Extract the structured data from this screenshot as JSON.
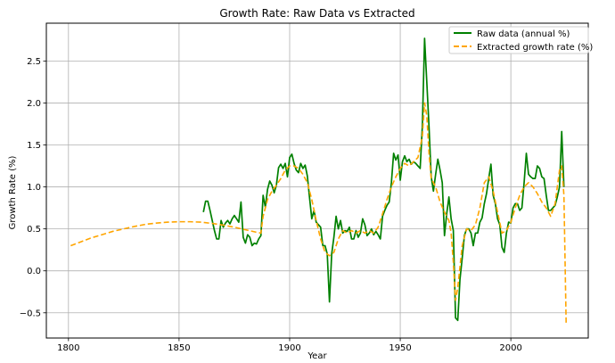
{
  "chart_data": {
    "type": "line",
    "title": "Growth Rate: Raw Data vs Extracted",
    "xlabel": "Year",
    "ylabel": "Growth Rate (%)",
    "xlim": [
      1790,
      2035
    ],
    "ylim": [
      -0.8,
      2.95
    ],
    "xticks": [
      1800,
      1850,
      1900,
      1950,
      2000
    ],
    "yticks": [
      -0.5,
      0.0,
      0.5,
      1.0,
      1.5,
      2.0,
      2.5
    ],
    "xtick_labels": [
      "1800",
      "1850",
      "1900",
      "1950",
      "2000"
    ],
    "ytick_labels": [
      "−0.5",
      "0.0",
      "0.5",
      "1.0",
      "1.5",
      "2.0",
      "2.5"
    ],
    "grid": true,
    "legend_position": "top-right",
    "series": [
      {
        "name": "Raw data (annual %)",
        "color": "#008000",
        "style": "solid",
        "points": [
          [
            1861,
            0.7
          ],
          [
            1862,
            0.83
          ],
          [
            1863,
            0.83
          ],
          [
            1864,
            0.72
          ],
          [
            1865,
            0.6
          ],
          [
            1866,
            0.48
          ],
          [
            1867,
            0.38
          ],
          [
            1868,
            0.38
          ],
          [
            1869,
            0.6
          ],
          [
            1870,
            0.52
          ],
          [
            1871,
            0.57
          ],
          [
            1872,
            0.6
          ],
          [
            1873,
            0.56
          ],
          [
            1874,
            0.62
          ],
          [
            1875,
            0.66
          ],
          [
            1876,
            0.62
          ],
          [
            1877,
            0.58
          ],
          [
            1878,
            0.82
          ],
          [
            1879,
            0.4
          ],
          [
            1880,
            0.33
          ],
          [
            1881,
            0.43
          ],
          [
            1882,
            0.4
          ],
          [
            1883,
            0.3
          ],
          [
            1884,
            0.33
          ],
          [
            1885,
            0.32
          ],
          [
            1886,
            0.38
          ],
          [
            1887,
            0.42
          ],
          [
            1888,
            0.9
          ],
          [
            1889,
            0.76
          ],
          [
            1890,
            0.97
          ],
          [
            1891,
            1.07
          ],
          [
            1892,
            1.02
          ],
          [
            1893,
            0.93
          ],
          [
            1894,
            1.02
          ],
          [
            1895,
            1.23
          ],
          [
            1896,
            1.27
          ],
          [
            1897,
            1.22
          ],
          [
            1898,
            1.28
          ],
          [
            1899,
            1.12
          ],
          [
            1900,
            1.35
          ],
          [
            1901,
            1.39
          ],
          [
            1902,
            1.28
          ],
          [
            1903,
            1.2
          ],
          [
            1904,
            1.17
          ],
          [
            1905,
            1.28
          ],
          [
            1906,
            1.22
          ],
          [
            1907,
            1.26
          ],
          [
            1908,
            1.13
          ],
          [
            1909,
            0.87
          ],
          [
            1910,
            0.62
          ],
          [
            1911,
            0.72
          ],
          [
            1912,
            0.58
          ],
          [
            1913,
            0.55
          ],
          [
            1914,
            0.52
          ],
          [
            1915,
            0.3
          ],
          [
            1916,
            0.3
          ],
          [
            1917,
            0.2
          ],
          [
            1918,
            -0.37
          ],
          [
            1919,
            0.2
          ],
          [
            1920,
            0.4
          ],
          [
            1921,
            0.65
          ],
          [
            1922,
            0.5
          ],
          [
            1923,
            0.6
          ],
          [
            1924,
            0.45
          ],
          [
            1925,
            0.48
          ],
          [
            1926,
            0.47
          ],
          [
            1927,
            0.52
          ],
          [
            1928,
            0.38
          ],
          [
            1929,
            0.38
          ],
          [
            1930,
            0.48
          ],
          [
            1931,
            0.4
          ],
          [
            1932,
            0.45
          ],
          [
            1933,
            0.62
          ],
          [
            1934,
            0.55
          ],
          [
            1935,
            0.42
          ],
          [
            1936,
            0.45
          ],
          [
            1937,
            0.5
          ],
          [
            1938,
            0.43
          ],
          [
            1939,
            0.47
          ],
          [
            1940,
            0.43
          ],
          [
            1941,
            0.38
          ],
          [
            1942,
            0.65
          ],
          [
            1943,
            0.72
          ],
          [
            1944,
            0.78
          ],
          [
            1945,
            0.82
          ],
          [
            1946,
            1.05
          ],
          [
            1947,
            1.4
          ],
          [
            1948,
            1.32
          ],
          [
            1949,
            1.38
          ],
          [
            1950,
            1.08
          ],
          [
            1951,
            1.3
          ],
          [
            1952,
            1.37
          ],
          [
            1953,
            1.3
          ],
          [
            1954,
            1.33
          ],
          [
            1955,
            1.27
          ],
          [
            1956,
            1.3
          ],
          [
            1957,
            1.28
          ],
          [
            1958,
            1.25
          ],
          [
            1959,
            1.22
          ],
          [
            1960,
            1.73
          ],
          [
            1961,
            2.77
          ],
          [
            1962,
            2.25
          ],
          [
            1963,
            1.72
          ],
          [
            1964,
            1.12
          ],
          [
            1965,
            0.95
          ],
          [
            1966,
            1.15
          ],
          [
            1967,
            1.33
          ],
          [
            1968,
            1.2
          ],
          [
            1969,
            1.05
          ],
          [
            1970,
            0.42
          ],
          [
            1971,
            0.68
          ],
          [
            1972,
            0.88
          ],
          [
            1973,
            0.62
          ],
          [
            1974,
            0.48
          ],
          [
            1975,
            -0.56
          ],
          [
            1976,
            -0.59
          ],
          [
            1977,
            -0.1
          ],
          [
            1978,
            0.15
          ],
          [
            1979,
            0.42
          ],
          [
            1980,
            0.5
          ],
          [
            1981,
            0.5
          ],
          [
            1982,
            0.45
          ],
          [
            1983,
            0.3
          ],
          [
            1984,
            0.45
          ],
          [
            1985,
            0.45
          ],
          [
            1986,
            0.58
          ],
          [
            1987,
            0.63
          ],
          [
            1988,
            0.8
          ],
          [
            1989,
            0.92
          ],
          [
            1990,
            1.1
          ],
          [
            1991,
            1.27
          ],
          [
            1992,
            0.9
          ],
          [
            1993,
            0.8
          ],
          [
            1994,
            0.62
          ],
          [
            1995,
            0.55
          ],
          [
            1996,
            0.28
          ],
          [
            1997,
            0.22
          ],
          [
            1998,
            0.45
          ],
          [
            1999,
            0.58
          ],
          [
            2000,
            0.57
          ],
          [
            2001,
            0.75
          ],
          [
            2002,
            0.8
          ],
          [
            2003,
            0.8
          ],
          [
            2004,
            0.72
          ],
          [
            2005,
            0.75
          ],
          [
            2006,
            1.05
          ],
          [
            2007,
            1.4
          ],
          [
            2008,
            1.15
          ],
          [
            2009,
            1.12
          ],
          [
            2010,
            1.1
          ],
          [
            2011,
            1.1
          ],
          [
            2012,
            1.25
          ],
          [
            2013,
            1.22
          ],
          [
            2014,
            1.12
          ],
          [
            2015,
            1.1
          ],
          [
            2016,
            0.9
          ],
          [
            2017,
            0.72
          ],
          [
            2018,
            0.72
          ],
          [
            2019,
            0.75
          ],
          [
            2020,
            0.78
          ],
          [
            2021,
            0.88
          ],
          [
            2022,
            1.0
          ],
          [
            2023,
            1.66
          ],
          [
            2024,
            1.0
          ]
        ]
      },
      {
        "name": "Extracted growth rate (%)",
        "color": "#FFA500",
        "style": "dashed",
        "points": [
          [
            1801,
            0.3
          ],
          [
            1805,
            0.34
          ],
          [
            1810,
            0.39
          ],
          [
            1815,
            0.43
          ],
          [
            1820,
            0.47
          ],
          [
            1825,
            0.5
          ],
          [
            1830,
            0.53
          ],
          [
            1835,
            0.555
          ],
          [
            1840,
            0.57
          ],
          [
            1845,
            0.58
          ],
          [
            1850,
            0.585
          ],
          [
            1855,
            0.585
          ],
          [
            1860,
            0.58
          ],
          [
            1865,
            0.565
          ],
          [
            1870,
            0.545
          ],
          [
            1875,
            0.52
          ],
          [
            1880,
            0.49
          ],
          [
            1885,
            0.46
          ],
          [
            1887,
            0.45
          ],
          [
            1888,
            0.65
          ],
          [
            1890,
            0.85
          ],
          [
            1892,
            0.95
          ],
          [
            1894,
            1.02
          ],
          [
            1896,
            1.1
          ],
          [
            1898,
            1.2
          ],
          [
            1900,
            1.25
          ],
          [
            1902,
            1.25
          ],
          [
            1904,
            1.22
          ],
          [
            1906,
            1.15
          ],
          [
            1908,
            1.05
          ],
          [
            1910,
            0.85
          ],
          [
            1912,
            0.6
          ],
          [
            1914,
            0.38
          ],
          [
            1916,
            0.22
          ],
          [
            1918,
            0.18
          ],
          [
            1920,
            0.22
          ],
          [
            1922,
            0.38
          ],
          [
            1924,
            0.48
          ],
          [
            1926,
            0.45
          ],
          [
            1928,
            0.48
          ],
          [
            1930,
            0.45
          ],
          [
            1932,
            0.48
          ],
          [
            1934,
            0.45
          ],
          [
            1936,
            0.48
          ],
          [
            1938,
            0.45
          ],
          [
            1940,
            0.52
          ],
          [
            1942,
            0.68
          ],
          [
            1944,
            0.85
          ],
          [
            1946,
            1.0
          ],
          [
            1948,
            1.12
          ],
          [
            1950,
            1.22
          ],
          [
            1952,
            1.28
          ],
          [
            1954,
            1.25
          ],
          [
            1956,
            1.3
          ],
          [
            1958,
            1.35
          ],
          [
            1960,
            1.6
          ],
          [
            1961,
            2.0
          ],
          [
            1962,
            1.85
          ],
          [
            1963,
            1.4
          ],
          [
            1964,
            1.1
          ],
          [
            1966,
            1.0
          ],
          [
            1968,
            0.82
          ],
          [
            1970,
            0.7
          ],
          [
            1972,
            0.6
          ],
          [
            1973,
            0.45
          ],
          [
            1974,
            0.1
          ],
          [
            1975,
            -0.35
          ],
          [
            1976,
            -0.2
          ],
          [
            1977,
            0.05
          ],
          [
            1978,
            0.3
          ],
          [
            1980,
            0.5
          ],
          [
            1982,
            0.48
          ],
          [
            1984,
            0.55
          ],
          [
            1986,
            0.75
          ],
          [
            1988,
            1.05
          ],
          [
            1990,
            1.12
          ],
          [
            1992,
            0.95
          ],
          [
            1994,
            0.7
          ],
          [
            1996,
            0.45
          ],
          [
            1998,
            0.48
          ],
          [
            2000,
            0.58
          ],
          [
            2002,
            0.75
          ],
          [
            2004,
            0.9
          ],
          [
            2006,
            1.0
          ],
          [
            2008,
            1.05
          ],
          [
            2010,
            1.0
          ],
          [
            2012,
            0.92
          ],
          [
            2014,
            0.82
          ],
          [
            2016,
            0.75
          ],
          [
            2018,
            0.65
          ],
          [
            2020,
            0.8
          ],
          [
            2022,
            1.2
          ],
          [
            2023,
            1.25
          ],
          [
            2024,
            0.9
          ],
          [
            2025,
            -0.62
          ]
        ]
      }
    ]
  }
}
